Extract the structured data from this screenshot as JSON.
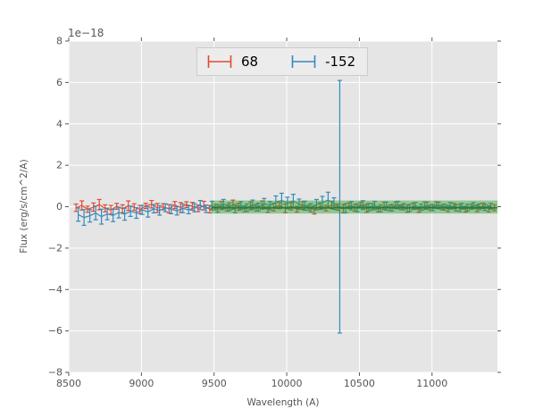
{
  "chart_data": {
    "type": "line",
    "subtype": "errorbar-spectrum",
    "title": "",
    "xlabel": "Wavelength (A)",
    "ylabel": "Flux (erg/s/cm^2/A)",
    "offset_text": "1e−18",
    "xlim": [
      8500,
      11450
    ],
    "ylim": [
      -8,
      8
    ],
    "grid": true,
    "legend_position": "upper center",
    "xticks": [
      8500,
      9000,
      9500,
      10000,
      10500,
      11000
    ],
    "xtick_labels": [
      "8500",
      "9000",
      "9500",
      "10000",
      "10500",
      "11000"
    ],
    "yticks": [
      8,
      6,
      4,
      2,
      0,
      -2,
      -4,
      -6,
      -8
    ],
    "ytick_labels": [
      "8",
      "6",
      "4",
      "2",
      "0",
      "−2",
      "−4",
      "−6",
      "−8"
    ],
    "colors": {
      "figure_bg": "#ffffff",
      "axes_bg": "#e5e5e5",
      "grid": "#ffffff",
      "tick": "#555555",
      "legend_bg": "#ececec",
      "legend_border": "#cccccc"
    },
    "series": [
      {
        "name": "68",
        "color": "#e24a33",
        "flux_unit_scale": 1e-18,
        "x": [
          8550,
          8590,
          8630,
          8670,
          8710,
          8750,
          8790,
          8830,
          8870,
          8910,
          8950,
          8990,
          9030,
          9070,
          9110,
          9150,
          9190,
          9230,
          9270,
          9310,
          9350,
          9390,
          9430,
          9470,
          9510,
          9550,
          9590,
          9630,
          9670,
          9710,
          9750,
          9790,
          9830,
          9870,
          9910,
          9950,
          9990,
          10030,
          10070,
          10110,
          10150,
          10190,
          10230,
          10270,
          10310,
          10350,
          10390,
          10430,
          10470,
          10510,
          10550,
          10590,
          10630,
          10670,
          10710,
          10750,
          10790,
          10830,
          10870,
          10910,
          10950,
          10990,
          11030,
          11070,
          11110,
          11150,
          11190,
          11230,
          11270,
          11310,
          11350,
          11390,
          11430
        ],
        "y": [
          -0.05,
          0.06,
          -0.12,
          -0.02,
          0.1,
          -0.08,
          -0.15,
          0.02,
          -0.1,
          0.05,
          -0.02,
          -0.14,
          0.04,
          0.12,
          -0.06,
          0.0,
          -0.1,
          0.08,
          -0.04,
          0.1,
          0.02,
          -0.08,
          0.05,
          -0.12,
          -0.02,
          0.06,
          -0.06,
          0.1,
          0.0,
          -0.1,
          0.04,
          -0.05,
          0.08,
          -0.14,
          -0.02,
          0.05,
          -0.08,
          0.02,
          -0.12,
          0.06,
          -0.04,
          -0.15,
          0.03,
          -0.07,
          0.09,
          -0.02,
          -0.1,
          0.05,
          -0.05,
          0.1,
          -0.08,
          0.0,
          -0.12,
          0.04,
          -0.06,
          0.07,
          -0.03,
          -0.1,
          0.02,
          -0.14,
          0.05,
          -0.05,
          0.08,
          -0.02,
          -0.09,
          0.03,
          -0.06,
          -0.12,
          0.0,
          -0.08,
          0.04,
          -0.1,
          -0.05
        ],
        "yerr": [
          0.18,
          0.22,
          0.15,
          0.2,
          0.25,
          0.17,
          0.21,
          0.14,
          0.19,
          0.23,
          0.16,
          0.2,
          0.13,
          0.18,
          0.22,
          0.15,
          0.2,
          0.17,
          0.24,
          0.14,
          0.19,
          0.16,
          0.21,
          0.18,
          0.13,
          0.2,
          0.15,
          0.22,
          0.17,
          0.14,
          0.19,
          0.16,
          0.2,
          0.13,
          0.18,
          0.15,
          0.21,
          0.17,
          0.14,
          0.19,
          0.12,
          0.2,
          0.16,
          0.13,
          0.18,
          0.15,
          0.2,
          0.14,
          0.17,
          0.12,
          0.19,
          0.15,
          0.13,
          0.18,
          0.14,
          0.16,
          0.12,
          0.17,
          0.15,
          0.13,
          0.18,
          0.14,
          0.16,
          0.12,
          0.15,
          0.13,
          0.17,
          0.14,
          0.12,
          0.16,
          0.13,
          0.15,
          0.14
        ]
      },
      {
        "name": "-152",
        "color": "#348abd",
        "flux_unit_scale": 1e-18,
        "x": [
          8565,
          8605,
          8645,
          8685,
          8725,
          8765,
          8805,
          8845,
          8885,
          8925,
          8965,
          9005,
          9045,
          9085,
          9125,
          9165,
          9205,
          9245,
          9285,
          9325,
          9365,
          9405,
          9445,
          9485,
          9525,
          9565,
          9605,
          9645,
          9685,
          9725,
          9765,
          9805,
          9845,
          9885,
          9925,
          9965,
          10005,
          10045,
          10085,
          10125,
          10165,
          10205,
          10245,
          10285,
          10325,
          10365,
          10405,
          10445,
          10485,
          10525,
          10565,
          10605,
          10645,
          10685,
          10725,
          10765,
          10805,
          10845,
          10885,
          10925,
          10965,
          11005,
          11045,
          11085,
          11125,
          11165,
          11205,
          11245,
          11285,
          11325,
          11365,
          11405
        ],
        "y": [
          -0.38,
          -0.52,
          -0.44,
          -0.3,
          -0.48,
          -0.35,
          -0.42,
          -0.28,
          -0.36,
          -0.22,
          -0.3,
          -0.15,
          -0.25,
          -0.1,
          -0.18,
          -0.05,
          -0.12,
          -0.2,
          -0.08,
          -0.15,
          -0.05,
          0.08,
          -0.1,
          0.05,
          -0.08,
          0.12,
          0.0,
          -0.1,
          0.06,
          -0.05,
          0.1,
          -0.02,
          0.15,
          0.05,
          0.22,
          0.3,
          0.18,
          0.28,
          0.12,
          0.05,
          -0.05,
          0.1,
          0.2,
          0.32,
          0.15,
          0.0,
          -0.08,
          0.05,
          -0.05,
          0.08,
          -0.02,
          0.06,
          -0.08,
          0.03,
          -0.05,
          0.08,
          0.0,
          -0.06,
          0.04,
          -0.03,
          0.05,
          -0.04,
          0.06,
          -0.02,
          0.04,
          -0.05,
          0.02,
          -0.04,
          0.05,
          0.0,
          -0.03,
          0.02
        ],
        "yerr": [
          0.32,
          0.38,
          0.3,
          0.33,
          0.36,
          0.28,
          0.3,
          0.26,
          0.29,
          0.25,
          0.26,
          0.22,
          0.25,
          0.2,
          0.23,
          0.19,
          0.22,
          0.2,
          0.21,
          0.19,
          0.2,
          0.22,
          0.18,
          0.21,
          0.19,
          0.23,
          0.18,
          0.2,
          0.19,
          0.18,
          0.22,
          0.19,
          0.25,
          0.2,
          0.3,
          0.35,
          0.28,
          0.32,
          0.25,
          0.22,
          0.2,
          0.25,
          0.3,
          0.38,
          0.28,
          6.1,
          0.22,
          0.2,
          0.19,
          0.21,
          0.18,
          0.2,
          0.17,
          0.19,
          0.16,
          0.18,
          0.15,
          0.17,
          0.16,
          0.15,
          0.17,
          0.15,
          0.16,
          0.14,
          0.16,
          0.15,
          0.14,
          0.16,
          0.15,
          0.14,
          0.15,
          0.14
        ]
      }
    ],
    "band": {
      "description": "green model band with center line",
      "x_start": 9480,
      "x_end": 11450,
      "lower": -0.33,
      "upper": 0.3,
      "center": -0.05,
      "color": "#2ca02c",
      "alpha": 0.45,
      "line_color": "#1e7b2d"
    }
  }
}
